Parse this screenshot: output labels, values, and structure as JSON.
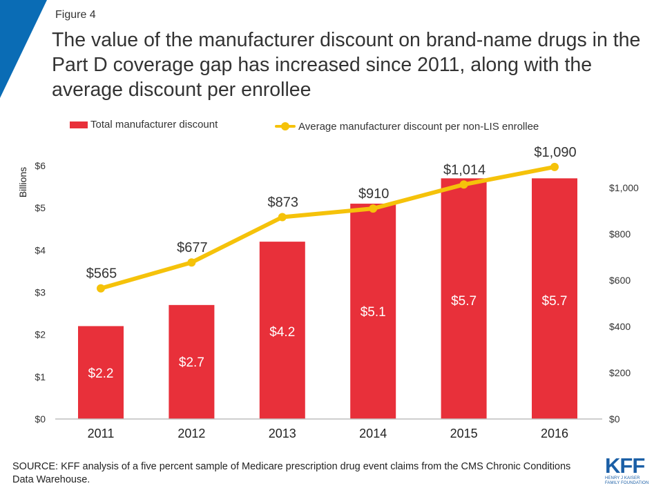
{
  "figure_label": "Figure 4",
  "title": "The value of the manufacturer discount on brand-name drugs in the Part D coverage gap has increased since 2011, along with the average discount per enrollee",
  "source": "SOURCE: KFF analysis of a five percent sample of Medicare prescription drug event claims from the CMS Chronic Conditions Data Warehouse.",
  "logo": {
    "main": "KFF",
    "line1": "HENRY J KAISER",
    "line2": "FAMILY FOUNDATION"
  },
  "colors": {
    "bar": "#e8303a",
    "line": "#f5c20a",
    "accent": "#0a6cb5",
    "logo": "#1b5fa6"
  },
  "chart_data": {
    "type": "bar",
    "categories": [
      "2011",
      "2012",
      "2013",
      "2014",
      "2015",
      "2016"
    ],
    "series": [
      {
        "name": "Total manufacturer discount",
        "type": "bar",
        "axis": "left",
        "values": [
          2.2,
          2.7,
          4.2,
          5.1,
          5.7,
          5.7
        ],
        "labels": [
          "$2.2",
          "$2.7",
          "$4.2",
          "$5.1",
          "$5.7",
          "$5.7"
        ]
      },
      {
        "name": "Average manufacturer discount per non-LIS enrollee",
        "type": "line",
        "axis": "right",
        "values": [
          565,
          677,
          873,
          910,
          1014,
          1090
        ],
        "labels": [
          "$565",
          "$677",
          "$873",
          "$910",
          "$1,014",
          "$1,090"
        ]
      }
    ],
    "y_left": {
      "label": "Billions",
      "ylim": [
        0,
        6
      ],
      "ticks": [
        "$0",
        "$1",
        "$2",
        "$3",
        "$4",
        "$5",
        "$6"
      ]
    },
    "y_right": {
      "label": "",
      "ylim": [
        0,
        1100
      ],
      "ticks": [
        "$0",
        "$200",
        "$400",
        "$600",
        "$800",
        "$1,000"
      ]
    },
    "grid": false,
    "legend": "top"
  }
}
